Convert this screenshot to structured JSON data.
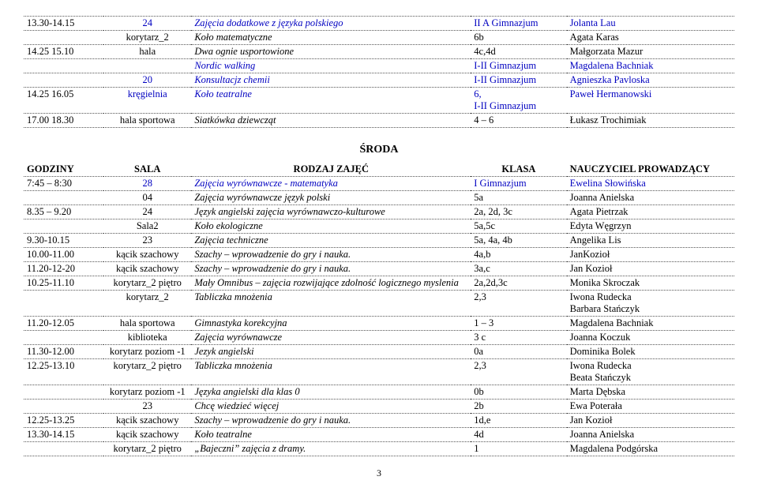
{
  "top": {
    "rows": [
      {
        "g": "13.30-14.15",
        "s": "24",
        "sc": "blue",
        "z": "Zajęcia dodatkowe z języka polskiego",
        "zc": "blue em",
        "k": "II A Gimnazjum",
        "kc": "blue",
        "n": "Jolanta Lau",
        "nc": "blue"
      },
      {
        "g": "",
        "s": "korytarz_2",
        "sc": "",
        "z": "Koło matematyczne",
        "zc": "em",
        "k": "6b",
        "kc": "",
        "n": "Agata Karas",
        "nc": ""
      },
      {
        "g": "14.25 15.10",
        "s": "hala",
        "sc": "",
        "z": "Dwa ognie usportowione",
        "zc": "em",
        "k": "4c,4d",
        "kc": "",
        "n": "Małgorzata Mazur",
        "nc": ""
      },
      {
        "g": "",
        "s": "",
        "sc": "",
        "z": "Nordic walking",
        "zc": "blue em",
        "k": "I-II Gimnazjum",
        "kc": "blue",
        "n": "Magdalena Bachniak",
        "nc": "blue"
      },
      {
        "g": "",
        "s": "20",
        "sc": "blue",
        "z": "Konsultacjz chemii",
        "zc": "blue em",
        "k": "I-II Gimnazjum",
        "kc": "blue",
        "n": "Agnieszka Pavloska",
        "nc": "blue"
      },
      {
        "g": "14.25 16.05",
        "s": "kręgielnia",
        "sc": "blue",
        "z": "Koło teatralne",
        "zc": "blue em",
        "k": "6,\nI-II Gimnazjum",
        "kc": "blue",
        "n": "Paweł Hermanowski",
        "nc": "blue"
      },
      {
        "g": "17.00 18.30",
        "s": "hala sportowa",
        "sc": "",
        "z": "Siatkówka dziewcząt",
        "zc": "em",
        "k": "4 – 6",
        "kc": "",
        "n": "Łukasz Trochimiak",
        "nc": ""
      }
    ]
  },
  "sroda": {
    "title": "ŚRODA",
    "header": {
      "g": "GODZINY",
      "s": "SALA",
      "z": "RODZAJ ZAJĘĆ",
      "k": "KLASA",
      "n": "NAUCZYCIEL PROWADZĄCY"
    },
    "rows": [
      {
        "g": "7:45 – 8:30",
        "s": "28",
        "sc": "blue",
        "z": "Zajęcia wyrównawcze - matematyka",
        "zc": "blue em",
        "k": "I Gimnazjum",
        "kc": "blue",
        "n": "Ewelina Słowińska",
        "nc": "blue"
      },
      {
        "g": "",
        "s": "04",
        "sc": "",
        "z": "Zajęcia wyrównawcze język polski",
        "zc": "em",
        "k": "5a",
        "kc": "",
        "n": "Joanna Anielska",
        "nc": ""
      },
      {
        "g": "8.35 – 9.20",
        "s": "24",
        "sc": "",
        "z": "Język angielski zajęcia wyrównawczo-kulturowe",
        "zc": "em",
        "k": "2a, 2d, 3c",
        "kc": "",
        "n": "Agata Pietrzak",
        "nc": ""
      },
      {
        "g": "",
        "s": "Sala2",
        "sc": "",
        "z": "Koło ekologiczne",
        "zc": "em",
        "k": "5a,5c",
        "kc": "",
        "n": "Edyta Węgrzyn",
        "nc": ""
      },
      {
        "g": "9.30-10.15",
        "s": "23",
        "sc": "",
        "z": "Zajęcia techniczne",
        "zc": "em",
        "k": "5a, 4a, 4b",
        "kc": "",
        "n": "Angelika Lis",
        "nc": ""
      },
      {
        "g": "10.00-11.00",
        "s": "kącik szachowy",
        "sc": "",
        "z": "Szachy – wprowadzenie do gry i nauka.",
        "zc": "em",
        "k": "4a,b",
        "kc": "",
        "n": "JanKozioł",
        "nc": ""
      },
      {
        "g": "11.20-12-20",
        "s": "kącik szachowy",
        "sc": "",
        "z": "Szachy – wprowadzenie do gry i nauka.",
        "zc": "em",
        "k": "3a,c",
        "kc": "",
        "n": "Jan Kozioł",
        "nc": ""
      },
      {
        "g": "10.25-11.10",
        "s": "korytarz_2 piętro",
        "sc": "",
        "z": "Mały Omnibus – zajęcia rozwijające zdolność logicznego myslenia",
        "zc": "em",
        "k": "2a,2d,3c",
        "kc": "",
        "n": "Monika Skroczak",
        "nc": ""
      },
      {
        "g": "",
        "s": "korytarz_2",
        "sc": "",
        "z": "Tabliczka mnożenia",
        "zc": "em",
        "k": "2,3",
        "kc": "",
        "n": "Iwona Rudecka\nBarbara Stańczyk",
        "nc": ""
      },
      {
        "g": "11.20-12.05",
        "s": "hala sportowa",
        "sc": "",
        "z": "Gimnastyka korekcyjna",
        "zc": "em",
        "k": "1 – 3",
        "kc": "",
        "n": "Magdalena Bachniak",
        "nc": ""
      },
      {
        "g": "",
        "s": "kiblioteka",
        "sc": "",
        "z": "Zajęcia wyrównawcze",
        "zc": "em",
        "k": "3 c",
        "kc": "",
        "n": "Joanna Koczuk",
        "nc": ""
      },
      {
        "g": "11.30-12.00",
        "s": "korytarz poziom -1",
        "sc": "",
        "z": "Jezyk angielski",
        "zc": "em",
        "k": "0a",
        "kc": "",
        "n": "Dominika Bolek",
        "nc": ""
      },
      {
        "g": "12.25-13.10",
        "s": "korytarz_2 piętro",
        "sc": "",
        "z": "Tabliczka mnożenia",
        "zc": "em",
        "k": "2,3",
        "kc": "",
        "n": "Iwona Rudecka\nBeata Stańczyk",
        "nc": ""
      },
      {
        "g": "",
        "s": "korytarz poziom -1",
        "sc": "",
        "z": "Języka angielski dla klas 0",
        "zc": "em",
        "k": "0b",
        "kc": "",
        "n": "Marta Dębska",
        "nc": ""
      },
      {
        "g": "",
        "s": "23",
        "sc": "",
        "z": "Chcę wiedzieć więcej",
        "zc": "em",
        "k": "2b",
        "kc": "",
        "n": "Ewa Poterała",
        "nc": ""
      },
      {
        "g": "12.25-13.25",
        "s": "kącik szachowy",
        "sc": "",
        "z": "Szachy – wprowadzenie do gry i nauka.",
        "zc": "em",
        "k": "1d,e",
        "kc": "",
        "n": "Jan Kozioł",
        "nc": ""
      },
      {
        "g": "13.30-14.15",
        "s": "kącik szachowy",
        "sc": "",
        "z": "Koło teatralne",
        "zc": "em",
        "k": "4d",
        "kc": "",
        "n": "Joanna Anielska",
        "nc": ""
      },
      {
        "g": "",
        "s": "korytarz_2 piętro",
        "sc": "",
        "z": "„Bajeczni” zajęcia z dramy.",
        "zc": "em",
        "k": "1",
        "kc": "",
        "n": "Magdalena Podgórska",
        "nc": ""
      }
    ]
  },
  "page": "3"
}
